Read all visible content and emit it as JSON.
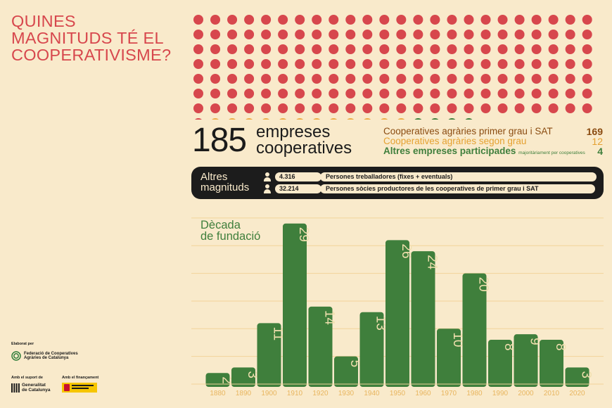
{
  "title_lines": [
    "QUINES",
    "MAGNITUDS TÉ EL",
    "COOPERATIVISME?"
  ],
  "total": "185",
  "total_label_lines": [
    "empreses",
    "cooperatives"
  ],
  "colors": {
    "primer": "#d7474d",
    "segon": "#eeac45",
    "altres": "#3f7f3c",
    "bar": "#3f7f3c",
    "bar_text": "#f0dfae",
    "tick": "#e8b55e",
    "grid": "#f2d39a"
  },
  "categories": [
    {
      "name": "Cooperatives agràries primer grau i SAT",
      "value": "169",
      "color": "#8a4b10",
      "note": ""
    },
    {
      "name": "Cooperatives agràries segon grau",
      "value": "12",
      "color": "#e5a131",
      "note": ""
    },
    {
      "name": "Altres empreses participades",
      "value": "4",
      "color": "#3f7f3c",
      "note": "majoritàriament per cooperatives"
    }
  ],
  "magnitudes": {
    "title_lines": [
      "Altres",
      "magnituds"
    ],
    "rows": [
      {
        "icon": "person-icon",
        "value": "4.316",
        "label": "Persones treballadores (fixes + eventuals)"
      },
      {
        "icon": "person-icon",
        "value": "32.214",
        "label": "Persones sòcies productores de les cooperatives de primer grau i SAT"
      }
    ]
  },
  "chart_label_lines": [
    "Dècada",
    "de fundació"
  ],
  "chart_data": {
    "type": "bar",
    "title": "Dècada de fundació",
    "categories": [
      "1880",
      "1890",
      "1900",
      "1910",
      "1920",
      "1930",
      "1940",
      "1950",
      "1960",
      "1970",
      "1980",
      "1990",
      "2000",
      "2010",
      "2020"
    ],
    "values": [
      2,
      3,
      11,
      29,
      14,
      5,
      13,
      26,
      24,
      10,
      20,
      8,
      9,
      8,
      3
    ],
    "ylim": [
      0,
      30
    ],
    "grid": true
  },
  "credits": {
    "elaborat": "Elaborat per",
    "federacio_lines": [
      "Federació de Cooperatives",
      "Agràries de Catalunya"
    ],
    "suport": "Amb el suport de",
    "generalitat_lines": [
      "Generalitat",
      "de Catalunya"
    ],
    "financament": "Amb el finançament"
  }
}
